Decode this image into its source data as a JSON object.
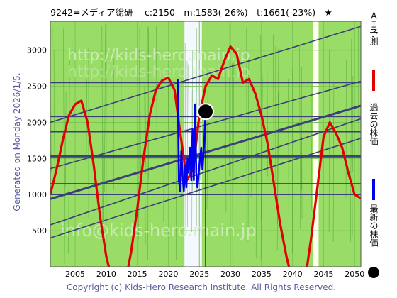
{
  "header": {
    "title": "9242=メディア総研　 c:2150　m:1583(-26%)　t:1661(-23%)　★"
  },
  "side_label": "Generated on Monday 2026/1/5.",
  "copyright": "Copyright (c) Kids-Hero Research Institute. All Rights Reserved.",
  "watermarks": [
    "http://kids-hero.main.jp",
    "info@kids-hero.main.jp"
  ],
  "legend": [
    {
      "label": "ＡＩ予測",
      "color": "#e00000",
      "marker": "line"
    },
    {
      "label": "過去の株価",
      "color": "#0000ee",
      "marker": "line"
    },
    {
      "label": "最新の株価",
      "color": "#000000",
      "marker": "dot"
    }
  ],
  "chart_data": {
    "type": "line",
    "title": "9242=メディア総研　 c:2150　m:1583(-26%)　t:1661(-23%)　★",
    "xlim": [
      2001,
      2051
    ],
    "ylim": [
      0,
      3400
    ],
    "x_ticks": [
      2005,
      2010,
      2015,
      2020,
      2025,
      2030,
      2035,
      2040,
      2045,
      2050
    ],
    "y_ticks": [
      500,
      1000,
      1500,
      2000,
      2500,
      3000
    ],
    "grid": true,
    "background_color": "#99dd66",
    "highlight_bands": [
      {
        "from": 2022.6,
        "to": 2025.4,
        "color": "#f4f8ff"
      },
      {
        "from": 2043.3,
        "to": 2044.2,
        "color": "#fffff0"
      }
    ],
    "horizontal_lines": [
      1000,
      1150,
      1530,
      1870,
      2080,
      2550
    ],
    "trend_lines": [
      {
        "from": [
          2001,
          940
        ],
        "to": [
          2051,
          2230
        ],
        "thick": true
      },
      {
        "from": [
          2001,
          580
        ],
        "to": [
          2051,
          2050
        ]
      },
      {
        "from": [
          2001,
          400
        ],
        "to": [
          2051,
          1780
        ]
      },
      {
        "from": [
          2001,
          2000
        ],
        "to": [
          2051,
          3330
        ]
      },
      {
        "from": [
          2001,
          1360
        ],
        "to": [
          2051,
          2570
        ]
      }
    ],
    "series": [
      {
        "name": "ＡＩ予測",
        "color": "#e00000",
        "x": [
          2001,
          2002,
          2003,
          2004,
          2005,
          2006,
          2007,
          2008,
          2009,
          2010,
          2011,
          2012,
          2013,
          2014,
          2015,
          2016,
          2017,
          2018,
          2019,
          2020,
          2021,
          2022,
          2023,
          2024,
          2025,
          2026,
          2027,
          2028,
          2029,
          2030,
          2031,
          2032,
          2033,
          2034,
          2035,
          2036,
          2037,
          2038,
          2039,
          2040,
          2041,
          2042,
          2043,
          2044,
          2045,
          2046,
          2047,
          2048,
          2049,
          2050,
          2051
        ],
        "values": [
          1000,
          1350,
          1750,
          2100,
          2250,
          2300,
          2000,
          1400,
          700,
          150,
          -200,
          -400,
          -250,
          200,
          800,
          1500,
          2100,
          2450,
          2580,
          2620,
          2450,
          1800,
          1200,
          1350,
          2100,
          2500,
          2650,
          2600,
          2850,
          3050,
          2950,
          2550,
          2600,
          2400,
          2100,
          1700,
          1150,
          600,
          150,
          -200,
          -350,
          -200,
          400,
          1100,
          1800,
          2000,
          1850,
          1650,
          1300,
          1000,
          950
        ]
      },
      {
        "name": "過去の株価",
        "color": "#0000ee",
        "x": [
          2021.5,
          2021.7,
          2021.9,
          2022.1,
          2022.3,
          2022.5,
          2022.7,
          2022.9,
          2023.1,
          2023.3,
          2023.5,
          2023.7,
          2023.9,
          2024.1,
          2024.3,
          2024.5,
          2024.7,
          2024.9,
          2025.1,
          2025.3,
          2025.5,
          2025.7,
          2025.9,
          2026.0
        ],
        "values": [
          2600,
          1200,
          1050,
          1600,
          1250,
          1050,
          1400,
          1100,
          1500,
          1300,
          1650,
          1200,
          1900,
          1200,
          2250,
          1300,
          1100,
          1300,
          1500,
          1650,
          1350,
          1600,
          1950,
          2150
        ]
      },
      {
        "name": "最新の株価",
        "color": "#000000",
        "x": [
          2026.0
        ],
        "values": [
          2150
        ]
      }
    ]
  }
}
